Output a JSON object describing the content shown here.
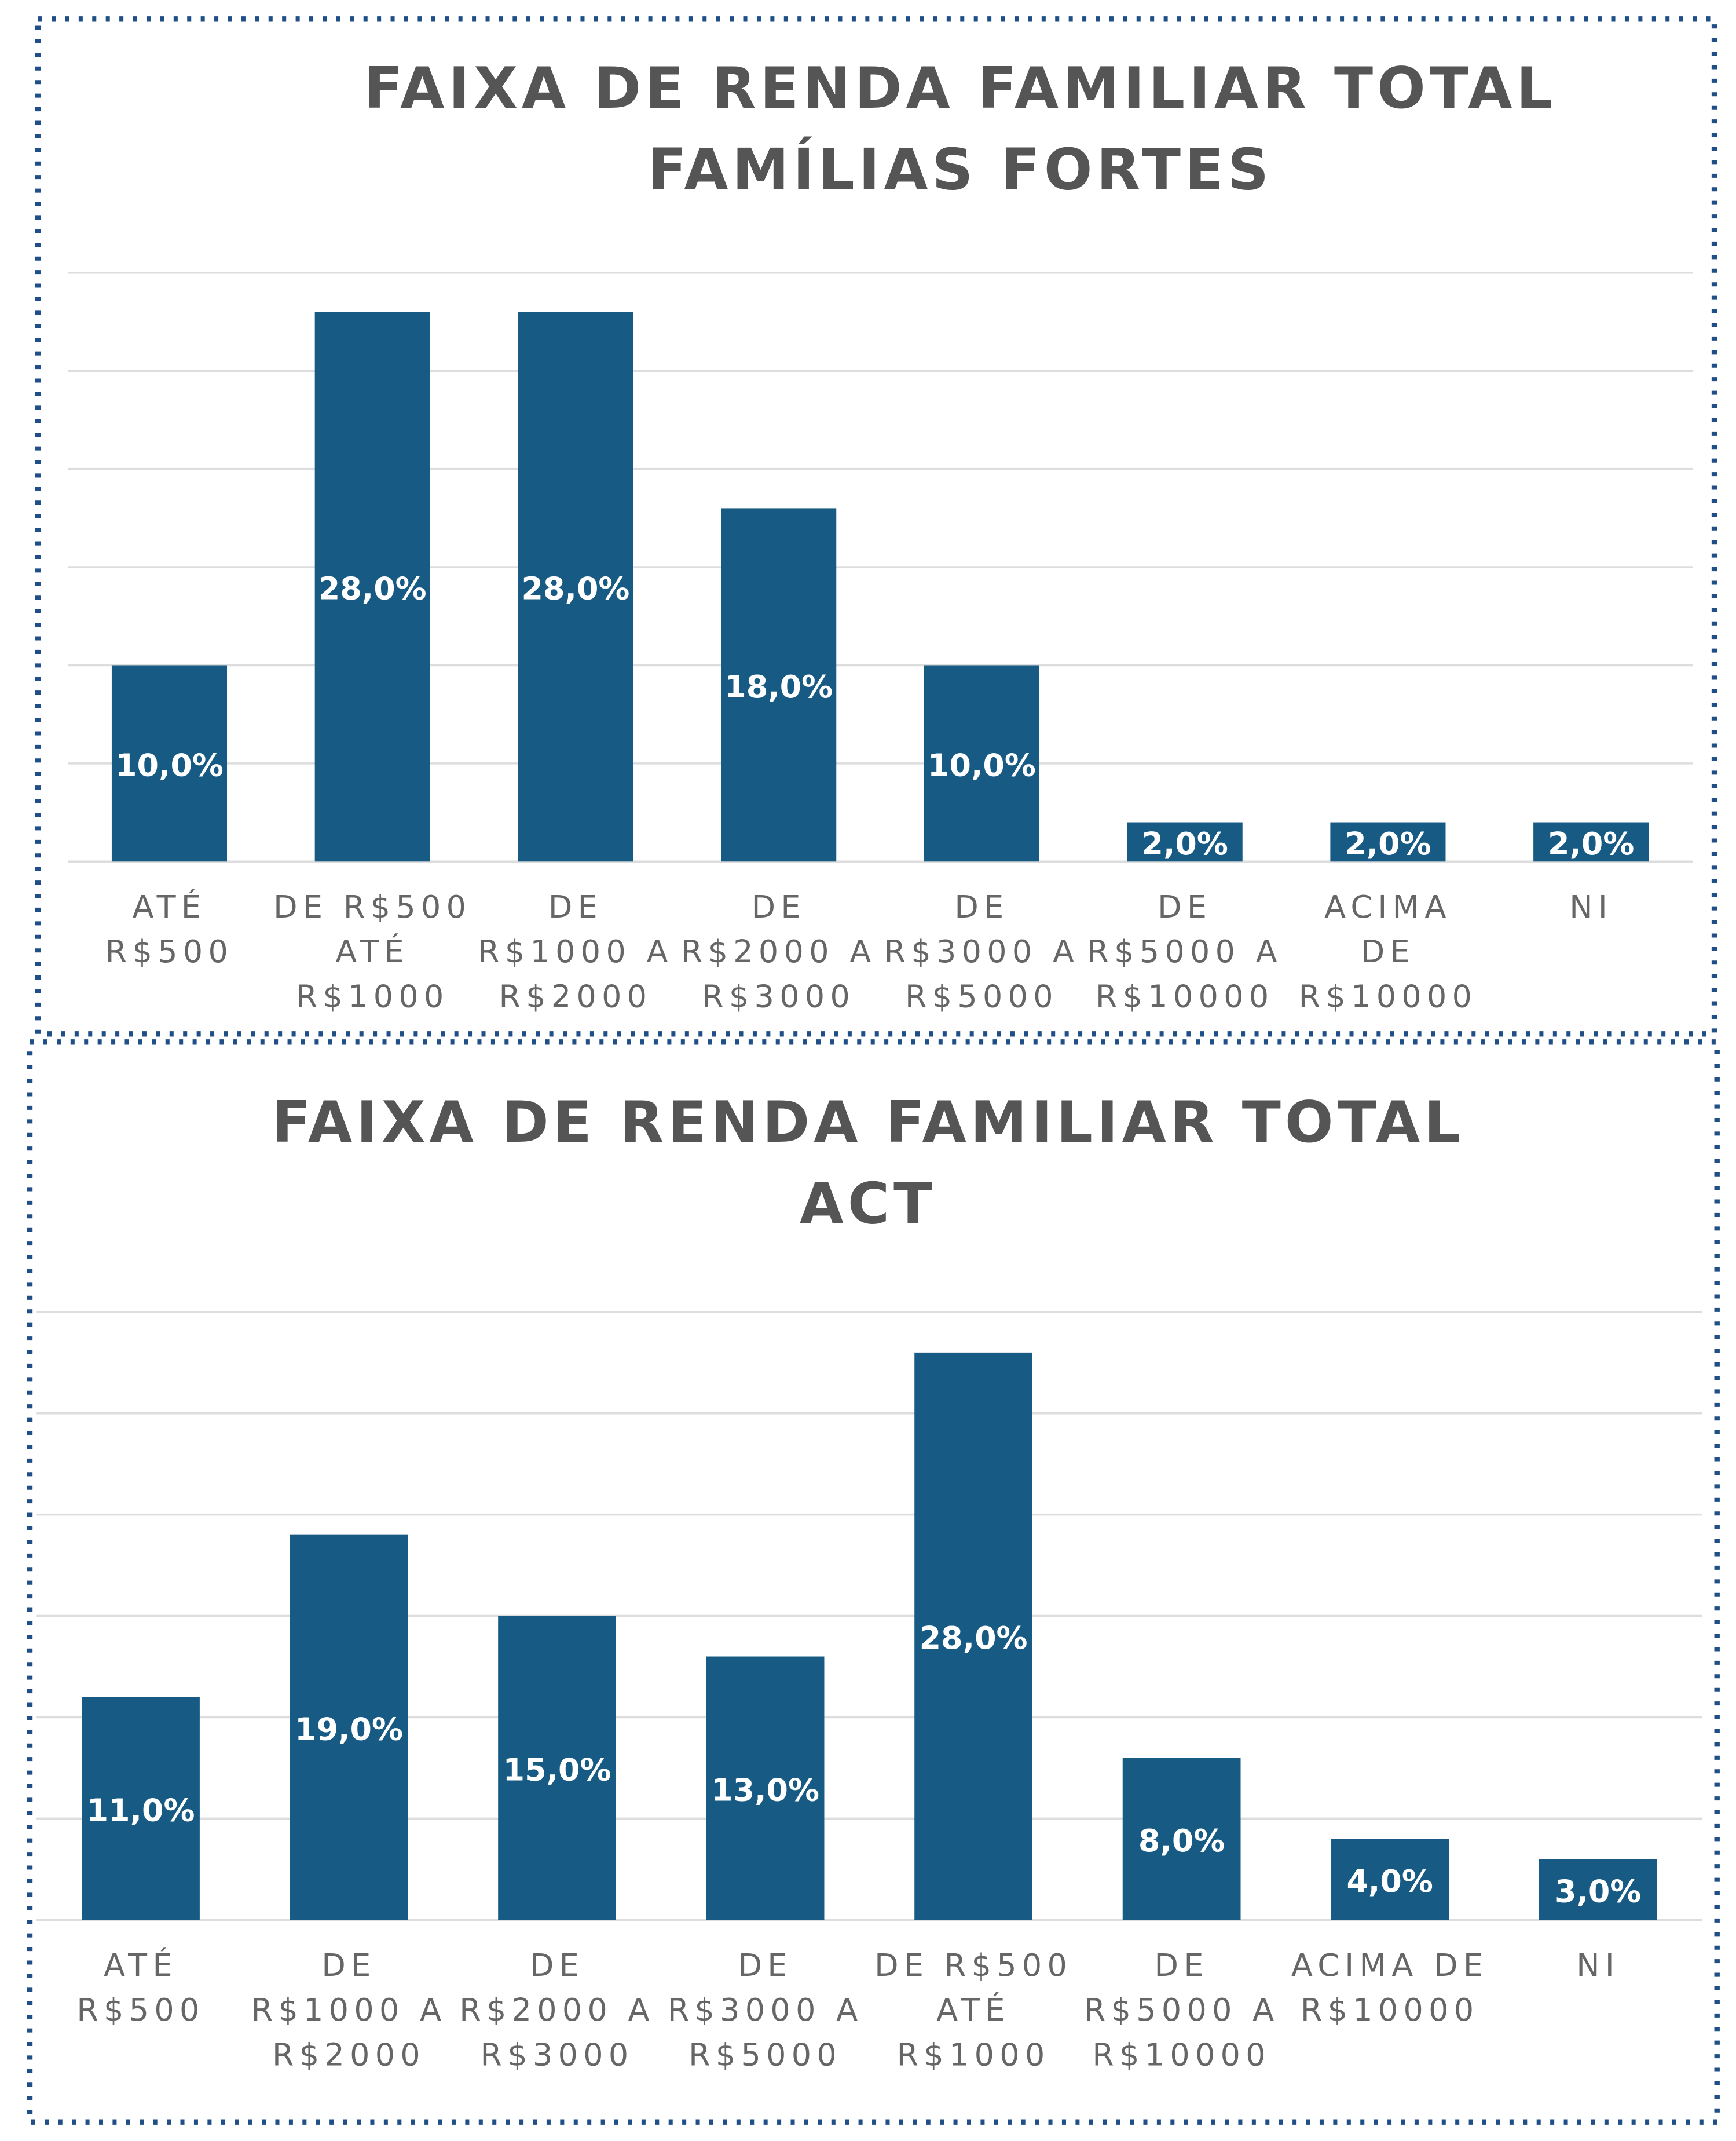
{
  "chart_data": [
    {
      "type": "bar",
      "title": "FAIXA DE RENDA FAMILIAR TOTAL",
      "subtitle": "FAMÍLIAS FORTES",
      "categories": [
        [
          "ATÉ",
          "R$500"
        ],
        [
          "DE R$500",
          "ATÉ",
          "R$1000"
        ],
        [
          "DE",
          "R$1000 A",
          "R$2000"
        ],
        [
          "DE",
          "R$2000 A",
          "R$3000"
        ],
        [
          "DE",
          "R$3000 A",
          "R$5000"
        ],
        [
          "DE",
          "R$5000 A",
          "R$10000"
        ],
        [
          "ACIMA",
          "DE",
          "R$10000"
        ],
        [
          "NI"
        ]
      ],
      "values": [
        10,
        28,
        28,
        18,
        10,
        2,
        2,
        2
      ],
      "value_labels": [
        "10,0%",
        "28,0%",
        "28,0%",
        "18,0%",
        "10,0%",
        "2,0%",
        "2,0%",
        "2,0%"
      ],
      "color": "#175b84",
      "ylim": [
        0,
        30
      ],
      "yticks": [
        0,
        5,
        10,
        15,
        20,
        25,
        30
      ],
      "grid": true
    },
    {
      "type": "bar",
      "title": "FAIXA DE RENDA FAMILIAR TOTAL",
      "subtitle": "ACT",
      "categories": [
        [
          "ATÉ",
          "R$500"
        ],
        [
          "DE",
          "R$1000 A",
          "R$2000"
        ],
        [
          "DE",
          "R$2000 A",
          "R$3000"
        ],
        [
          "DE",
          "R$3000 A",
          "R$5000"
        ],
        [
          "DE R$500",
          "ATÉ",
          "R$1000"
        ],
        [
          "DE",
          "R$5000 A",
          "R$10000"
        ],
        [
          "ACIMA DE",
          "R$10000"
        ],
        [
          "NI"
        ]
      ],
      "values": [
        11,
        19,
        15,
        13,
        28,
        8,
        4,
        3
      ],
      "value_labels": [
        "11,0%",
        "19,0%",
        "15,0%",
        "13,0%",
        "28,0%",
        "8,0%",
        "4,0%",
        "3,0%"
      ],
      "color": "#175b84",
      "ylim": [
        0,
        30
      ],
      "yticks": [
        0,
        5,
        10,
        15,
        20,
        25,
        30
      ],
      "grid": true
    }
  ]
}
